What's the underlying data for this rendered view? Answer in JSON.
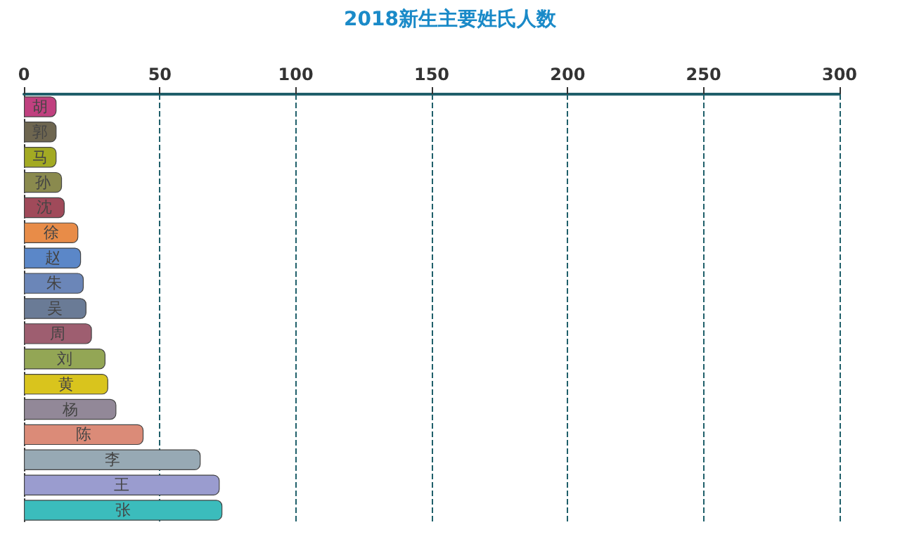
{
  "chart_data": {
    "type": "bar",
    "orientation": "horizontal",
    "title": "2018新生主要姓氏人数",
    "categories": [
      "胡",
      "郭",
      "马",
      "孙",
      "沈",
      "徐",
      "赵",
      "朱",
      "吴",
      "周",
      "刘",
      "黄",
      "杨",
      "陈",
      "李",
      "王",
      "张"
    ],
    "values": [
      12,
      12,
      12,
      14,
      15,
      20,
      21,
      22,
      23,
      25,
      30,
      31,
      34,
      44,
      65,
      72,
      73
    ],
    "colors": [
      "#c0407f",
      "#6e6650",
      "#a3aa23",
      "#8a8a4e",
      "#a04a5a",
      "#e88c48",
      "#5b87c8",
      "#6b86b8",
      "#6a7b96",
      "#9e5e70",
      "#93a655",
      "#d9c41d",
      "#928898",
      "#db8b78",
      "#97a9b4",
      "#9a9ccf",
      "#3bbcbc"
    ],
    "xlim": [
      0,
      300
    ],
    "xticks": [
      0,
      50,
      100,
      150,
      200,
      250,
      300
    ],
    "grid": "x",
    "tick_labels": "x"
  }
}
